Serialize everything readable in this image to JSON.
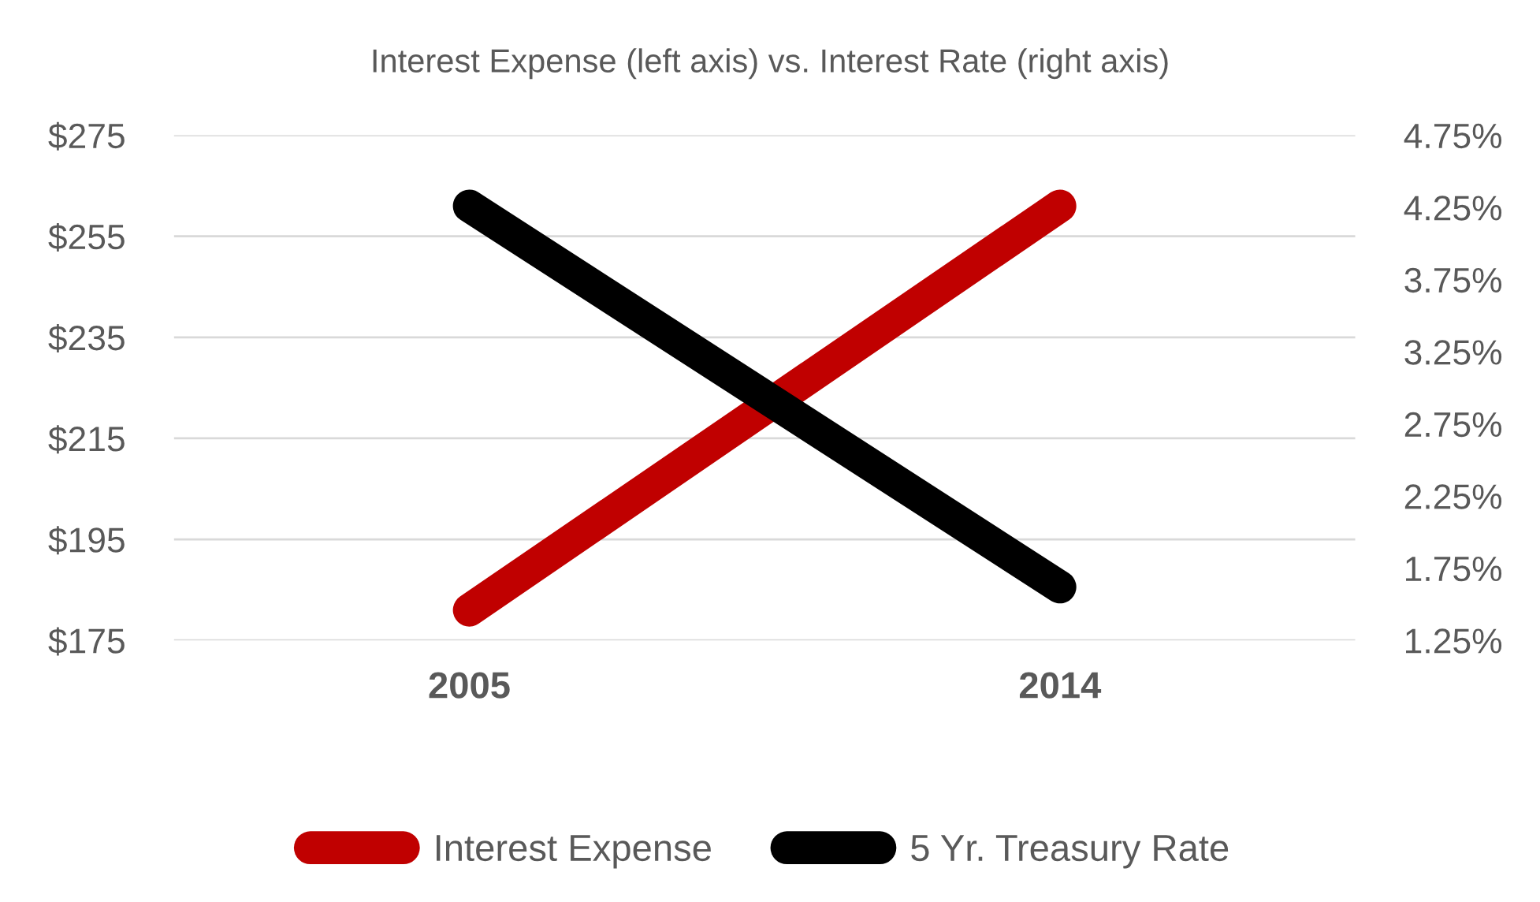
{
  "chart_data": {
    "type": "line",
    "title": "Interest Expense (left axis) vs. Interest Rate (right axis)",
    "categories": [
      "2005",
      "2014"
    ],
    "series": [
      {
        "name": "Interest Expense",
        "color": "#c00000",
        "values": [
          181,
          261
        ]
      },
      {
        "name": "5 Yr. Treasury Rate",
        "color": "#000000",
        "values": [
          4.26,
          1.62
        ],
        "axis": "y2"
      }
    ],
    "ylim": [
      175,
      275
    ],
    "yticks": [
      {
        "value": 175,
        "label": "$175"
      },
      {
        "value": 195,
        "label": "$195"
      },
      {
        "value": 215,
        "label": "$215"
      },
      {
        "value": 235,
        "label": "$235"
      },
      {
        "value": 255,
        "label": "$255"
      },
      {
        "value": 275,
        "label": "$275"
      }
    ],
    "y2lim": [
      1.25,
      4.75
    ],
    "y2ticks": [
      {
        "value": 1.25,
        "label": "1.25%"
      },
      {
        "value": 1.75,
        "label": "1.75%"
      },
      {
        "value": 2.25,
        "label": "2.25%"
      },
      {
        "value": 2.75,
        "label": "2.75%"
      },
      {
        "value": 3.25,
        "label": "3.25%"
      },
      {
        "value": 3.75,
        "label": "3.75%"
      },
      {
        "value": 4.25,
        "label": "4.25%"
      },
      {
        "value": 4.75,
        "label": "4.75%"
      }
    ],
    "grid": "y",
    "legend": "bottom",
    "line_style": "solid",
    "marker": "none"
  }
}
